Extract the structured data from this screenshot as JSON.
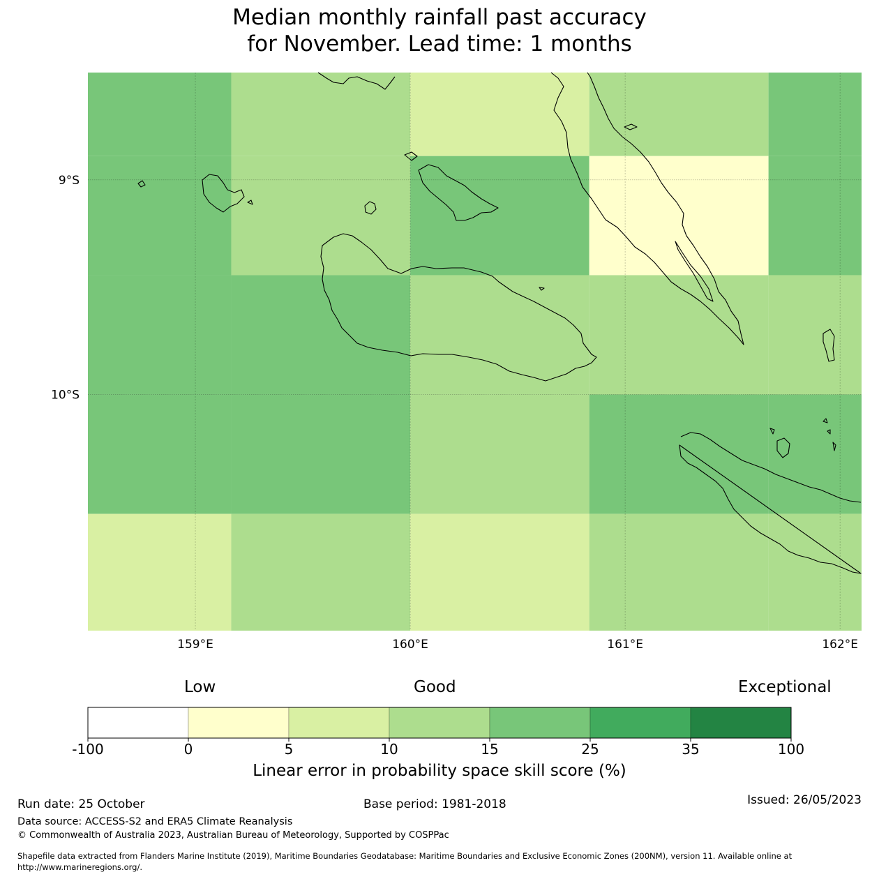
{
  "title": {
    "line1": "Median monthly rainfall past accuracy",
    "line2": "for November. Lead time: 1 months"
  },
  "map": {
    "lat_ticks": [
      "9°S",
      "10°S"
    ],
    "lon_ticks": [
      "159°E",
      "160°E",
      "161°E",
      "162°E"
    ],
    "extent": {
      "lon_min": 158.5,
      "lon_max": 162.1,
      "lat_max": -8.5,
      "lat_min": -11.1
    },
    "grid_lon": [
      158.5,
      159.167,
      160.0,
      160.833,
      161.667,
      162.1
    ],
    "grid_lat": [
      -8.5,
      -8.889,
      -9.444,
      -10.0,
      -10.556,
      -11.1
    ],
    "cells": [
      [
        15,
        10,
        5,
        10,
        15
      ],
      [
        15,
        10,
        15,
        0,
        15
      ],
      [
        15,
        15,
        10,
        10,
        10
      ],
      [
        15,
        15,
        10,
        15,
        15
      ],
      [
        5,
        10,
        5,
        10,
        10
      ]
    ]
  },
  "legend": {
    "label_low": "Low",
    "label_good": "Good",
    "label_exceptional": "Exceptional",
    "ticks": [
      "-100",
      "0",
      "5",
      "10",
      "15",
      "25",
      "35",
      "100"
    ],
    "colors": [
      "#ffffff",
      "#ffffcc",
      "#d9f0a3",
      "#addd8e",
      "#78c679",
      "#41ab5d",
      "#238443"
    ],
    "title": "Linear error in probability space skill score (%)"
  },
  "footer": {
    "run_date": "Run date: 25 October",
    "base_period": "Base period: 1981-2018",
    "issued": "Issued: 26/05/2023",
    "data_source": "Data source: ACCESS-S2 and ERA5 Climate Reanalysis",
    "copyright": "© Commonwealth of Australia 2023, Australian Bureau of Meteorology, Supported by COSPPac",
    "shapefile_line1": "Shapefile data extracted from Flanders Marine Institute (2019), Maritime Boundaries Geodatabase: Maritime Boundaries and Exclusive Economic Zones (200NM), version 11. Available online at",
    "shapefile_line2": "http://www.marineregions.org/."
  }
}
